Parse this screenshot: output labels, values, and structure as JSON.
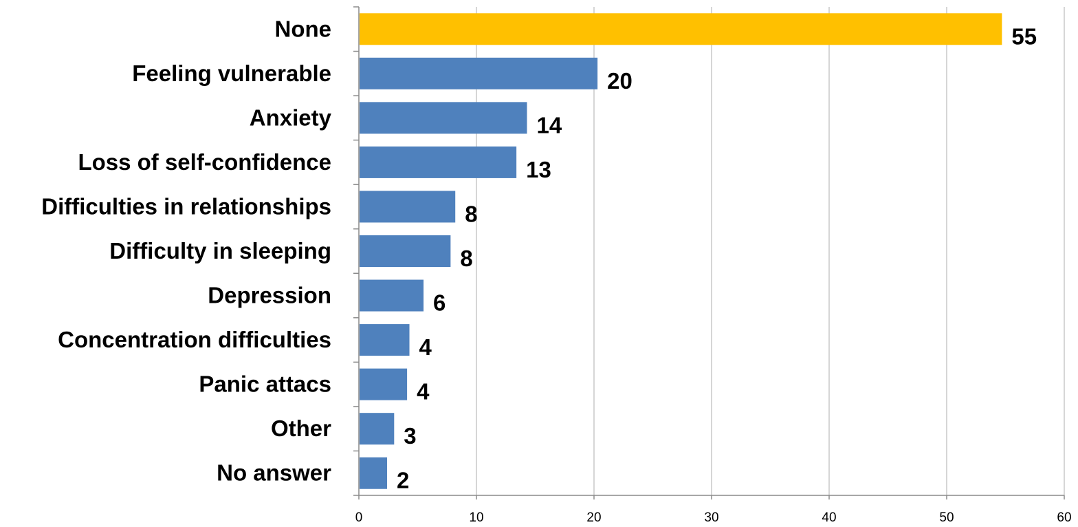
{
  "chart_data": {
    "type": "bar",
    "orientation": "horizontal",
    "title": "",
    "xlabel": "",
    "ylabel": "",
    "categories": [
      "None",
      "Feeling vulnerable",
      "Anxiety",
      "Loss of self-confidence",
      "Difficulties in relationships",
      "Difficulty in sleeping",
      "Depression",
      "Concentration difficulties",
      "Panic attacs",
      "Other",
      "No answer"
    ],
    "values": [
      54.7,
      20.3,
      14.3,
      13.4,
      8.2,
      7.8,
      5.5,
      4.3,
      4.1,
      3.0,
      2.4
    ],
    "data_labels": [
      "55",
      "20",
      "14",
      "13",
      "8",
      "8",
      "6",
      "4",
      "4",
      "3",
      "2"
    ],
    "xlim": [
      0,
      60
    ],
    "x_ticks": [
      0,
      10,
      20,
      30,
      40,
      50,
      60
    ],
    "grid": "vertical",
    "legend": "none",
    "colors": {
      "highlight": "#FFC000",
      "default": "#4F81BD"
    },
    "highlight_index": 0
  }
}
